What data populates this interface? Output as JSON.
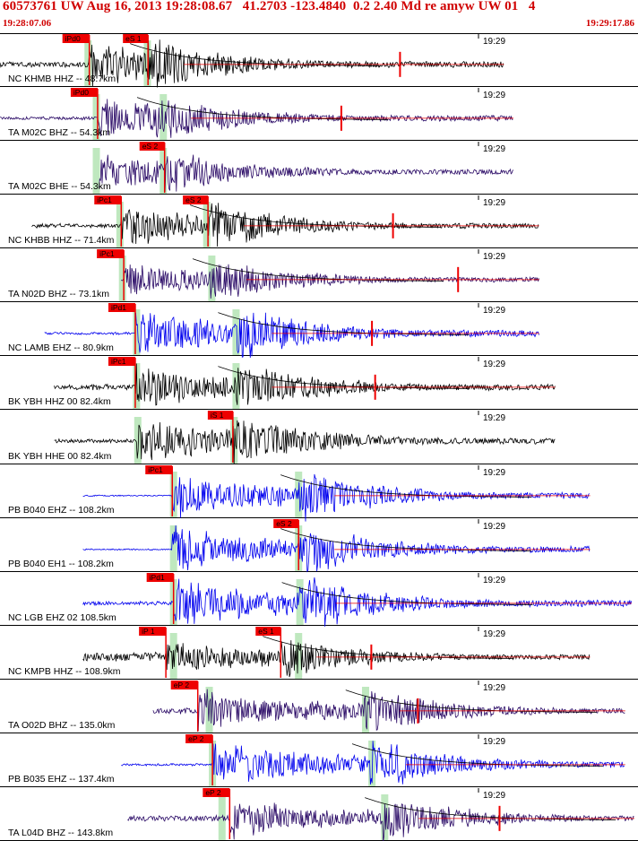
{
  "header": {
    "title": "60573761 UW Aug 16, 2013 19:28:08.67   41.2703 -123.4840  0.2 2.40 Md re amyw UW 01   4",
    "start_time": "19:28:07.06",
    "end_time": "19:29:17.86"
  },
  "chart_data": {
    "type": "line",
    "minute_mark": "19:29",
    "colors": {
      "pick": "#ee0000",
      "pick_window": "#b8e6b8",
      "grid": "#000000"
    },
    "traces": [
      {
        "label": "NC KHMB HHZ -- 48.7km",
        "color": "#000000",
        "start": 0.0,
        "end": 0.79,
        "p_label": "iPd0",
        "p": 0.14,
        "s_label": "eS 1",
        "s": 0.232,
        "pw": 0.138,
        "sw": 0.231,
        "amp": 22,
        "noise": 0.12,
        "coda": 0.0,
        "red_marker": 0.627
      },
      {
        "label": "TA M02C BHZ -- 54.3km",
        "color": "#2a0a66",
        "start": 0.0,
        "end": 0.805,
        "p_label": "iPd0",
        "p": 0.153,
        "s_label": "",
        "s": 0.243,
        "pw": 0.151,
        "sw": 0.256,
        "amp": 20,
        "noise": 0.08,
        "coda": 0.0,
        "red_marker": 0.535
      },
      {
        "label": "TA M02C BHE -- 54.3km",
        "color": "#2a0a66",
        "start": 0.155,
        "end": 0.805,
        "p_label": "",
        "p": 0.153,
        "s_label": "eS 2",
        "s": 0.258,
        "pw": 0.151,
        "sw": 0.256,
        "amp": 18,
        "noise": 0.05,
        "coda": 0.0,
        "red_marker": null
      },
      {
        "label": "NC KHBB HHZ -- 71.4km",
        "color": "#000000",
        "start": 0.05,
        "end": 0.845,
        "p_label": "iPc1",
        "p": 0.19,
        "s_label": "eS 2",
        "s": 0.326,
        "pw": 0.188,
        "sw": 0.324,
        "amp": 20,
        "noise": 0.1,
        "coda": 0.0,
        "red_marker": 0.616
      },
      {
        "label": "TA N02D BHZ -- 73.1km",
        "color": "#2a0a66",
        "start": 0.19,
        "end": 0.845,
        "p_label": "iPc1",
        "p": 0.194,
        "s_label": "",
        "s": 0.33,
        "pw": 0.192,
        "sw": 0.332,
        "amp": 18,
        "noise": 0.08,
        "coda": 0.0,
        "red_marker": 0.718
      },
      {
        "label": "NC LAMB EHZ -- 80.9km",
        "color": "#0000ee",
        "start": 0.07,
        "end": 0.845,
        "p_label": "iPd1",
        "p": 0.212,
        "s_label": "",
        "s": 0.37,
        "pw": 0.214,
        "sw": 0.37,
        "amp": 24,
        "noise": 0.05,
        "coda": 0.22,
        "red_marker": 0.583
      },
      {
        "label": "BK YBH HHZ 00 82.4km",
        "color": "#000000",
        "start": 0.085,
        "end": 0.87,
        "p_label": "iPc1",
        "p": 0.212,
        "s_label": "",
        "s": 0.37,
        "pw": 0.214,
        "sw": 0.37,
        "amp": 22,
        "noise": 0.12,
        "coda": 0.2,
        "red_marker": 0.588
      },
      {
        "label": "BK YBH HHE 00 82.4km",
        "color": "#000000",
        "start": 0.085,
        "end": 0.87,
        "p_label": "",
        "p": 0.214,
        "s_label": "iS 1",
        "s": 0.365,
        "pw": 0.216,
        "sw": 0.367,
        "amp": 22,
        "noise": 0.08,
        "coda": 0.0,
        "red_marker": null
      },
      {
        "label": "PB B040 EHZ -- 108.2km",
        "color": "#0000ee",
        "start": 0.13,
        "end": 0.925,
        "p_label": "iPc1",
        "p": 0.27,
        "s_label": "",
        "s": 0.468,
        "pw": 0.272,
        "sw": 0.468,
        "amp": 22,
        "noise": 0.03,
        "coda": 0.28,
        "red_marker": null
      },
      {
        "label": "PB B040 EH1 -- 108.2km",
        "color": "#0000ee",
        "start": 0.13,
        "end": 0.925,
        "p_label": "",
        "p": 0.27,
        "s_label": "eS 2",
        "s": 0.468,
        "pw": 0.272,
        "sw": 0.468,
        "amp": 22,
        "noise": 0.03,
        "coda": 0.28,
        "red_marker": null
      },
      {
        "label": "NC LGB EHZ 02 108.5km",
        "color": "#0000ee",
        "start": 0.13,
        "end": 0.99,
        "p_label": "iPd1",
        "p": 0.272,
        "s_label": "",
        "s": 0.47,
        "pw": 0.272,
        "sw": 0.47,
        "amp": 24,
        "noise": 0.08,
        "coda": 0.3,
        "red_marker": null
      },
      {
        "label": "NC KMPB HHZ -- 108.9km",
        "color": "#000000",
        "start": 0.13,
        "end": 0.925,
        "p_label": "iP 1",
        "p": 0.26,
        "s_label": "eS 1",
        "s": 0.44,
        "pw": 0.272,
        "sw": 0.468,
        "amp": 18,
        "noise": 0.25,
        "coda": 0.0,
        "red_marker": 0.582
      },
      {
        "label": "TA O02D BHZ -- 135.0km",
        "color": "#2a0a66",
        "start": 0.24,
        "end": 0.98,
        "p_label": "eP 2",
        "p": 0.31,
        "s_label": "",
        "s": 0.57,
        "pw": 0.328,
        "sw": 0.573,
        "amp": 20,
        "noise": 0.15,
        "coda": 0.22,
        "red_marker": 0.655
      },
      {
        "label": "PB B035 EHZ -- 137.4km",
        "color": "#0000ee",
        "start": 0.19,
        "end": 0.98,
        "p_label": "eP 2",
        "p": 0.333,
        "s_label": "",
        "s": 0.58,
        "pw": 0.333,
        "sw": 0.583,
        "amp": 22,
        "noise": 0.05,
        "coda": 0.3,
        "red_marker": null
      },
      {
        "label": "TA L04D BHZ -- 143.8km",
        "color": "#2a0a66",
        "start": 0.2,
        "end": 0.995,
        "p_label": "eP 2",
        "p": 0.36,
        "s_label": "",
        "s": 0.6,
        "pw": 0.348,
        "sw": 0.603,
        "amp": 20,
        "noise": 0.15,
        "coda": 0.22,
        "red_marker": 0.783
      }
    ]
  }
}
